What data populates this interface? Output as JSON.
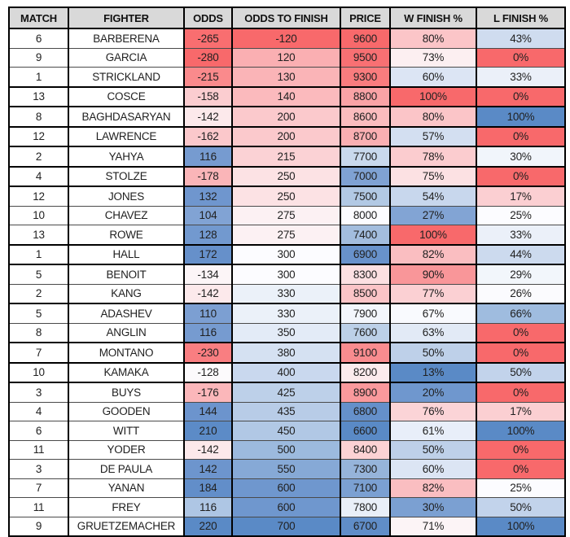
{
  "palette": {
    "page_bg": "#FFFFFF",
    "header_bg": "#D9D9D9",
    "grid_line_thick": "#000000",
    "grid_line_thin": "#4A4A4A",
    "text": "#212121",
    "scale_red_max": "#F8696B",
    "scale_mid_white": "#FCFCFF",
    "scale_blue_max": "#5A8AC6"
  },
  "chart_data": {
    "type": "table",
    "title": "",
    "columns": [
      "MATCH",
      "FIGHTER",
      "ODDS",
      "ODDS TO FINISH",
      "PRICE",
      "W FINISH %",
      "L FINISH %"
    ],
    "legend_note": "cells shaded on red-white-blue conditional color scale",
    "rows": [
      {
        "cells": [
          "6",
          "BARBERENA",
          "-265",
          "-120",
          "9600",
          "80%",
          "43%"
        ],
        "cell_colors": [
          "#FFFFFF",
          "#FFFFFF",
          "#F96E70",
          "#F8696B",
          "#F8696B",
          "#FBC5C8",
          "#CFDCEF"
        ],
        "thick_bottom": false
      },
      {
        "cells": [
          "9",
          "GARCIA",
          "-280",
          "120",
          "9500",
          "73%",
          "0%"
        ],
        "cell_colors": [
          "#FFFFFF",
          "#FFFFFF",
          "#F8696B",
          "#FAAFB2",
          "#F87073",
          "#FCEFF1",
          "#F8696B"
        ],
        "thick_bottom": false
      },
      {
        "cells": [
          "1",
          "STRICKLAND",
          "-215",
          "130",
          "9300",
          "60%",
          "33%"
        ],
        "cell_colors": [
          "#FFFFFF",
          "#FFFFFF",
          "#FA8A8C",
          "#FAB4B7",
          "#F97C7E",
          "#DCE5F4",
          "#EBF0F9"
        ],
        "thick_bottom": true
      },
      {
        "cells": [
          "13",
          "COSCE",
          "-158",
          "140",
          "8800",
          "100%",
          "0%"
        ],
        "cell_colors": [
          "#FFFFFF",
          "#FFFFFF",
          "#FBCDD0",
          "#FBBABD",
          "#FAA3A6",
          "#F8696B",
          "#F8696B"
        ],
        "thick_bottom": true
      },
      {
        "cells": [
          "8",
          "BAGHDASARYAN",
          "-142",
          "200",
          "8600",
          "80%",
          "100%"
        ],
        "cell_colors": [
          "#FFFFFF",
          "#FFFFFF",
          "#FCE9EB",
          "#FBC9CC",
          "#FBBCBE",
          "#FBC5C8",
          "#5A8AC6"
        ],
        "thick_bottom": true
      },
      {
        "cells": [
          "12",
          "LAWRENCE",
          "-162",
          "200",
          "8700",
          "57%",
          "0%"
        ],
        "cell_colors": [
          "#FFFFFF",
          "#FFFFFF",
          "#FBC8CB",
          "#FBC9CC",
          "#FAAFB2",
          "#D3DFF1",
          "#F8696B"
        ],
        "thick_bottom": true
      },
      {
        "cells": [
          "2",
          "YAHYA",
          "116",
          "215",
          "7700",
          "78%",
          "30%"
        ],
        "cell_colors": [
          "#FFFFFF",
          "#FFFFFF",
          "#769BD0",
          "#FBD2D5",
          "#C9D9ED",
          "#FBCCCF",
          "#F1F5FB"
        ],
        "thick_bottom": true
      },
      {
        "cells": [
          "4",
          "STOLZE",
          "-178",
          "250",
          "7000",
          "75%",
          "0%"
        ],
        "cell_colors": [
          "#FFFFFF",
          "#FFFFFF",
          "#FAB5B8",
          "#FCE2E4",
          "#7FA2D3",
          "#FCE1E3",
          "#F8696B"
        ],
        "thick_bottom": true
      },
      {
        "cells": [
          "12",
          "JONES",
          "132",
          "250",
          "7500",
          "54%",
          "17%"
        ],
        "cell_colors": [
          "#FFFFFF",
          "#FFFFFF",
          "#6F96CE",
          "#FCE2E4",
          "#B2C9E4",
          "#C8D7ED",
          "#FBCFD2"
        ],
        "thick_bottom": false
      },
      {
        "cells": [
          "10",
          "CHAVEZ",
          "104",
          "275",
          "8000",
          "27%",
          "25%"
        ],
        "cell_colors": [
          "#FFFFFF",
          "#FFFFFF",
          "#81A3D4",
          "#FCF1F3",
          "#FCFCFF",
          "#82A4D4",
          "#FCFCFF"
        ],
        "thick_bottom": false
      },
      {
        "cells": [
          "13",
          "ROWE",
          "128",
          "275",
          "7400",
          "100%",
          "33%"
        ],
        "cell_colors": [
          "#FFFFFF",
          "#FFFFFF",
          "#7299CF",
          "#FCF1F3",
          "#A3BDDE",
          "#F8696B",
          "#EBF0F9"
        ],
        "thick_bottom": true
      },
      {
        "cells": [
          "1",
          "HALL",
          "172",
          "300",
          "6900",
          "82%",
          "44%"
        ],
        "cell_colors": [
          "#FFFFFF",
          "#FFFFFF",
          "#6690CA",
          "#FCFCFF",
          "#6892CB",
          "#FABEC1",
          "#CCDAEE"
        ],
        "thick_bottom": true
      },
      {
        "cells": [
          "5",
          "BENOIT",
          "-134",
          "300",
          "8300",
          "90%",
          "29%"
        ],
        "cell_colors": [
          "#FFFFFF",
          "#FFFFFF",
          "#FCF5F7",
          "#FCFCFF",
          "#FCE0E2",
          "#F99699",
          "#F2F6FB"
        ],
        "thick_bottom": false
      },
      {
        "cells": [
          "2",
          "KANG",
          "-142",
          "330",
          "8500",
          "77%",
          "26%"
        ],
        "cell_colors": [
          "#FFFFFF",
          "#FFFFFF",
          "#FCE9EB",
          "#EBF1F9",
          "#FBC4C7",
          "#FBD0D3",
          "#FBFBFE"
        ],
        "thick_bottom": true
      },
      {
        "cells": [
          "5",
          "ADASHEV",
          "110",
          "330",
          "7900",
          "67%",
          "66%"
        ],
        "cell_colors": [
          "#FFFFFF",
          "#FFFFFF",
          "#7C9FD2",
          "#EBF1F9",
          "#F3F6FC",
          "#F9FAFE",
          "#9FBCDF"
        ],
        "thick_bottom": false
      },
      {
        "cells": [
          "8",
          "ANGLIN",
          "116",
          "350",
          "7600",
          "63%",
          "0%"
        ],
        "cell_colors": [
          "#FFFFFF",
          "#FFFFFF",
          "#769BD0",
          "#E3EBF7",
          "#BCD0E8",
          "#E2EAF6",
          "#F8696B"
        ],
        "thick_bottom": true
      },
      {
        "cells": [
          "7",
          "MONTANO",
          "-230",
          "380",
          "9100",
          "50%",
          "0%"
        ],
        "cell_colors": [
          "#FFFFFF",
          "#FFFFFF",
          "#F97E81",
          "#D5E1F2",
          "#F98C8F",
          "#BED0E9",
          "#F8696B"
        ],
        "thick_bottom": true
      },
      {
        "cells": [
          "10",
          "KAMAKA",
          "-128",
          "400",
          "8200",
          "13%",
          "50%"
        ],
        "cell_colors": [
          "#FFFFFF",
          "#FFFFFF",
          "#FCFAFC",
          "#C9D8EE",
          "#FCEBED",
          "#5A8AC6",
          "#C2D3EB"
        ],
        "thick_bottom": true
      },
      {
        "cells": [
          "3",
          "BUYS",
          "-176",
          "425",
          "8900",
          "20%",
          "0%"
        ],
        "cell_colors": [
          "#FFFFFF",
          "#FFFFFF",
          "#FBB7BA",
          "#BDD0E9",
          "#FA999C",
          "#6F97CE",
          "#F8696B"
        ],
        "thick_bottom": false
      },
      {
        "cells": [
          "4",
          "GOODEN",
          "144",
          "435",
          "6800",
          "76%",
          "17%"
        ],
        "cell_colors": [
          "#FFFFFF",
          "#FFFFFF",
          "#6C94CD",
          "#B8CCE7",
          "#6590CA",
          "#FBD4D7",
          "#FBCFD2"
        ],
        "thick_bottom": false
      },
      {
        "cells": [
          "6",
          "WITT",
          "210",
          "450",
          "6600",
          "61%",
          "100%"
        ],
        "cell_colors": [
          "#FFFFFF",
          "#FFFFFF",
          "#5C8BC7",
          "#B1C8E5",
          "#5A8AC6",
          "#E8EEF9",
          "#5A8AC6"
        ],
        "thick_bottom": false
      },
      {
        "cells": [
          "11",
          "YODER",
          "-142",
          "500",
          "8400",
          "50%",
          "0%"
        ],
        "cell_colors": [
          "#FFFFFF",
          "#FFFFFF",
          "#FCE9EB",
          "#9CBADE",
          "#FCD2D4",
          "#BED0E9",
          "#F8696B"
        ],
        "thick_bottom": false
      },
      {
        "cells": [
          "3",
          "DE PAULA",
          "142",
          "550",
          "7300",
          "60%",
          "0%"
        ],
        "cell_colors": [
          "#FFFFFF",
          "#FFFFFF",
          "#6D95CD",
          "#86A9D6",
          "#96B4DA",
          "#DCE5F4",
          "#F8696B"
        ],
        "thick_bottom": false
      },
      {
        "cells": [
          "7",
          "YANAN",
          "184",
          "600",
          "7100",
          "82%",
          "25%"
        ],
        "cell_colors": [
          "#FFFFFF",
          "#FFFFFF",
          "#628EC9",
          "#6F97CE",
          "#7BA0D2",
          "#FABEC1",
          "#FCFCFF"
        ],
        "thick_bottom": false
      },
      {
        "cells": [
          "11",
          "FREY",
          "116",
          "600",
          "7800",
          "30%",
          "50%"
        ],
        "cell_colors": [
          "#FFFFFF",
          "#FFFFFF",
          "#AEC6E4",
          "#6F97CE",
          "#E9EFF8",
          "#7BA0D2",
          "#C2D3EB"
        ],
        "thick_bottom": false
      },
      {
        "cells": [
          "9",
          "GRUETZEMACHER",
          "220",
          "700",
          "6700",
          "71%",
          "100%"
        ],
        "cell_colors": [
          "#FFFFFF",
          "#FFFFFF",
          "#5A8AC6",
          "#5A8AC6",
          "#608DC8",
          "#FCF4F6",
          "#5A8AC6"
        ],
        "thick_bottom": false
      }
    ]
  }
}
